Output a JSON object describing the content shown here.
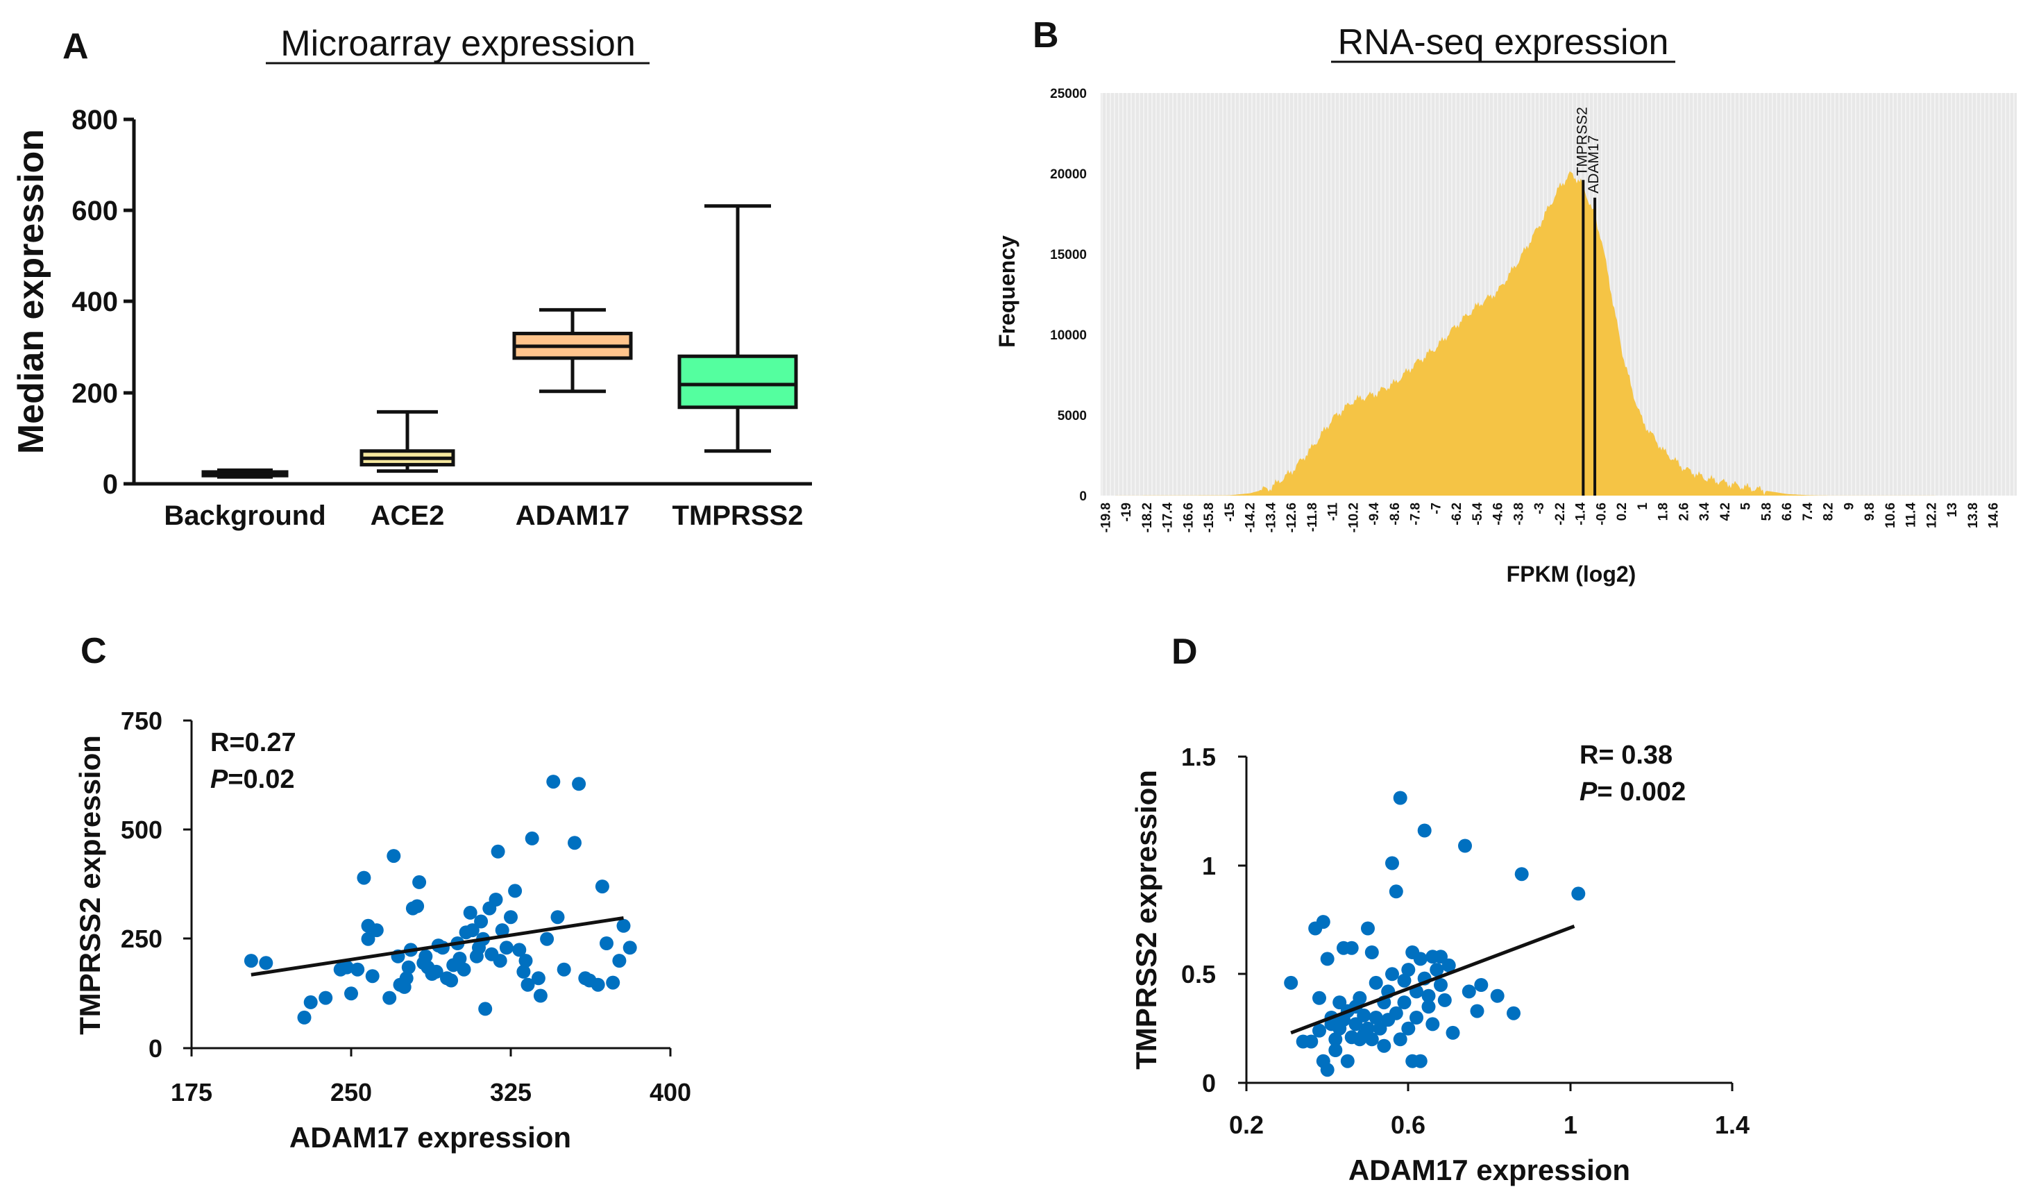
{
  "panels": {
    "a_label": "A",
    "b_label": "B",
    "c_label": "C",
    "d_label": "D"
  },
  "colors": {
    "ace2_box": "#F5E79E",
    "adam17_box": "#FFC48C",
    "tmprss2_box": "#54FF9F",
    "histogram_bar": "#F5C445",
    "histogram_bg": "#E8E8E8",
    "scatter_point": "#0070C0"
  },
  "chart_data": [
    {
      "type": "box",
      "title": "Microarray expression",
      "xlabel": "",
      "ylabel": "Median expression",
      "ylim": [
        0,
        800
      ],
      "yticks": [
        "0",
        "200",
        "400",
        "600",
        "800"
      ],
      "categories": [
        "Background",
        "ACE2",
        "ADAM17",
        "TMPRSS2"
      ],
      "boxes": [
        {
          "name": "Background",
          "min": 15,
          "q1": 18,
          "median": 22,
          "q3": 26,
          "max": 30
        },
        {
          "name": "ACE2",
          "min": 28,
          "q1": 42,
          "median": 56,
          "q3": 72,
          "max": 158
        },
        {
          "name": "ADAM17",
          "min": 203,
          "q1": 276,
          "median": 302,
          "q3": 330,
          "max": 382
        },
        {
          "name": "TMPRSS2",
          "min": 72,
          "q1": 168,
          "median": 218,
          "q3": 280,
          "max": 610
        }
      ]
    },
    {
      "type": "bar",
      "title": "RNA-seq expression",
      "xlabel": "FPKM (log2)",
      "ylabel": "Frequency",
      "ylim": [
        0,
        25000
      ],
      "yticks": [
        "0",
        "5000",
        "10000",
        "15000",
        "20000",
        "25000"
      ],
      "xlim": [
        -20,
        15.5
      ],
      "xticks": [
        "-19.8",
        "-19",
        "-18.2",
        "-17.4",
        "-16.6",
        "-15.8",
        "-15",
        "-14.2",
        "-13.4",
        "-12.6",
        "-11.8",
        "-11",
        "-10.2",
        "-9.4",
        "-8.6",
        "-7.8",
        "-7",
        "-6.2",
        "-5.4",
        "-4.6",
        "-3.8",
        "-3",
        "-2.2",
        "-1.4",
        "-0.6",
        "0.2",
        "1",
        "1.8",
        "2.6",
        "3.4",
        "4.2",
        "5",
        "5.8",
        "6.6",
        "7.4",
        "8.2",
        "9",
        "9.8",
        "10.6",
        "11.4",
        "12.2",
        "13",
        "13.8",
        "14.6"
      ],
      "distribution_profile": [
        [
          -20,
          0
        ],
        [
          -15,
          20
        ],
        [
          -14.2,
          150
        ],
        [
          -13.4,
          500
        ],
        [
          -12.6,
          1500
        ],
        [
          -11.8,
          3000
        ],
        [
          -11,
          4800
        ],
        [
          -10.2,
          5900
        ],
        [
          -9.4,
          6300
        ],
        [
          -8.6,
          7000
        ],
        [
          -7.8,
          8200
        ],
        [
          -7,
          9200
        ],
        [
          -6.2,
          10600
        ],
        [
          -5.4,
          11800
        ],
        [
          -4.6,
          12700
        ],
        [
          -3.8,
          14600
        ],
        [
          -3,
          16800
        ],
        [
          -2.2,
          19200
        ],
        [
          -1.8,
          20000
        ],
        [
          -1.4,
          19500
        ],
        [
          -1.0,
          18000
        ],
        [
          -0.6,
          16000
        ],
        [
          -0.2,
          12500
        ],
        [
          0.2,
          9000
        ],
        [
          0.6,
          6500
        ],
        [
          1,
          4600
        ],
        [
          1.8,
          2800
        ],
        [
          2.6,
          1700
        ],
        [
          3.4,
          1100
        ],
        [
          4.2,
          800
        ],
        [
          5,
          520
        ],
        [
          5.8,
          300
        ],
        [
          6.6,
          100
        ],
        [
          7.4,
          25
        ],
        [
          8.2,
          5
        ],
        [
          15.5,
          0
        ]
      ],
      "annotations": [
        {
          "label": "TMPRSS2",
          "x": -1.3,
          "line_top": 19600
        },
        {
          "label": "ADAM17",
          "x": -0.85,
          "line_top": 18500
        }
      ]
    },
    {
      "type": "scatter",
      "xlabel": "ADAM17 expression",
      "ylabel": "TMPRSS2  expression",
      "xlim": [
        175,
        400
      ],
      "ylim": [
        0,
        750
      ],
      "xticks": [
        "175",
        "250",
        "325",
        "400"
      ],
      "yticks": [
        "0",
        "250",
        "500",
        "750"
      ],
      "stats": {
        "r": "R=0.27",
        "p_symbol": "P",
        "p_value": "=0.02"
      },
      "trendline": [
        [
          203,
          168
        ],
        [
          378,
          298
        ]
      ],
      "points": [
        [
          203,
          200
        ],
        [
          210,
          195
        ],
        [
          228,
          70
        ],
        [
          231,
          105
        ],
        [
          238,
          115
        ],
        [
          245,
          180
        ],
        [
          248,
          185
        ],
        [
          250,
          125
        ],
        [
          253,
          180
        ],
        [
          256,
          390
        ],
        [
          258,
          250
        ],
        [
          258,
          280
        ],
        [
          260,
          165
        ],
        [
          262,
          270
        ],
        [
          268,
          115
        ],
        [
          270,
          440
        ],
        [
          272,
          210
        ],
        [
          273,
          145
        ],
        [
          275,
          140
        ],
        [
          276,
          160
        ],
        [
          277,
          185
        ],
        [
          278,
          225
        ],
        [
          279,
          320
        ],
        [
          281,
          325
        ],
        [
          282,
          380
        ],
        [
          284,
          195
        ],
        [
          285,
          210
        ],
        [
          286,
          185
        ],
        [
          288,
          170
        ],
        [
          290,
          175
        ],
        [
          291,
          235
        ],
        [
          293,
          230
        ],
        [
          295,
          160
        ],
        [
          297,
          155
        ],
        [
          298,
          190
        ],
        [
          300,
          240
        ],
        [
          301,
          205
        ],
        [
          303,
          180
        ],
        [
          304,
          265
        ],
        [
          306,
          310
        ],
        [
          307,
          270
        ],
        [
          309,
          210
        ],
        [
          310,
          230
        ],
        [
          311,
          290
        ],
        [
          312,
          250
        ],
        [
          313,
          90
        ],
        [
          315,
          320
        ],
        [
          316,
          215
        ],
        [
          318,
          340
        ],
        [
          319,
          450
        ],
        [
          320,
          200
        ],
        [
          321,
          270
        ],
        [
          323,
          230
        ],
        [
          325,
          300
        ],
        [
          327,
          360
        ],
        [
          329,
          225
        ],
        [
          331,
          175
        ],
        [
          332,
          200
        ],
        [
          333,
          145
        ],
        [
          335,
          480
        ],
        [
          338,
          160
        ],
        [
          339,
          120
        ],
        [
          342,
          250
        ],
        [
          345,
          610
        ],
        [
          347,
          300
        ],
        [
          350,
          180
        ],
        [
          355,
          470
        ],
        [
          357,
          605
        ],
        [
          360,
          160
        ],
        [
          362,
          155
        ],
        [
          366,
          145
        ],
        [
          368,
          370
        ],
        [
          370,
          240
        ],
        [
          373,
          150
        ],
        [
          376,
          200
        ],
        [
          378,
          280
        ],
        [
          381,
          230
        ]
      ]
    },
    {
      "type": "scatter",
      "xlabel": "ADAM17 expression",
      "ylabel": "TMPRSS2 expression",
      "xlim": [
        0.2,
        1.4
      ],
      "ylim": [
        0,
        1.5
      ],
      "xticks": [
        "0.2",
        "0.6",
        "1",
        "1.4"
      ],
      "yticks": [
        "0",
        "0.5",
        "1",
        "1.5"
      ],
      "stats": {
        "r": "R= 0.38",
        "p_symbol": "P",
        "p_value": "= 0.002"
      },
      "trendline": [
        [
          0.31,
          0.23
        ],
        [
          1.01,
          0.72
        ]
      ],
      "points": [
        [
          0.31,
          0.46
        ],
        [
          0.34,
          0.19
        ],
        [
          0.36,
          0.19
        ],
        [
          0.37,
          0.71
        ],
        [
          0.38,
          0.39
        ],
        [
          0.38,
          0.24
        ],
        [
          0.39,
          0.74
        ],
        [
          0.39,
          0.1
        ],
        [
          0.4,
          0.06
        ],
        [
          0.4,
          0.57
        ],
        [
          0.41,
          0.27
        ],
        [
          0.41,
          0.3
        ],
        [
          0.42,
          0.2
        ],
        [
          0.42,
          0.15
        ],
        [
          0.43,
          0.25
        ],
        [
          0.43,
          0.37
        ],
        [
          0.44,
          0.62
        ],
        [
          0.44,
          0.29
        ],
        [
          0.45,
          0.33
        ],
        [
          0.45,
          0.1
        ],
        [
          0.46,
          0.21
        ],
        [
          0.46,
          0.62
        ],
        [
          0.47,
          0.27
        ],
        [
          0.47,
          0.35
        ],
        [
          0.48,
          0.2
        ],
        [
          0.48,
          0.39
        ],
        [
          0.49,
          0.31
        ],
        [
          0.49,
          0.22
        ],
        [
          0.5,
          0.25
        ],
        [
          0.5,
          0.71
        ],
        [
          0.51,
          0.6
        ],
        [
          0.51,
          0.2
        ],
        [
          0.52,
          0.46
        ],
        [
          0.52,
          0.3
        ],
        [
          0.53,
          0.25
        ],
        [
          0.54,
          0.37
        ],
        [
          0.54,
          0.17
        ],
        [
          0.55,
          0.29
        ],
        [
          0.55,
          0.42
        ],
        [
          0.56,
          0.5
        ],
        [
          0.56,
          1.01
        ],
        [
          0.57,
          0.32
        ],
        [
          0.57,
          0.88
        ],
        [
          0.58,
          1.31
        ],
        [
          0.58,
          0.2
        ],
        [
          0.59,
          0.47
        ],
        [
          0.59,
          0.37
        ],
        [
          0.6,
          0.25
        ],
        [
          0.6,
          0.52
        ],
        [
          0.61,
          0.6
        ],
        [
          0.61,
          0.1
        ],
        [
          0.62,
          0.42
        ],
        [
          0.62,
          0.3
        ],
        [
          0.63,
          0.57
        ],
        [
          0.63,
          0.1
        ],
        [
          0.64,
          1.16
        ],
        [
          0.64,
          0.48
        ],
        [
          0.65,
          0.4
        ],
        [
          0.65,
          0.35
        ],
        [
          0.66,
          0.58
        ],
        [
          0.66,
          0.27
        ],
        [
          0.67,
          0.52
        ],
        [
          0.68,
          0.45
        ],
        [
          0.68,
          0.58
        ],
        [
          0.69,
          0.38
        ],
        [
          0.7,
          0.54
        ],
        [
          0.71,
          0.23
        ],
        [
          0.74,
          1.09
        ],
        [
          0.75,
          0.42
        ],
        [
          0.77,
          0.33
        ],
        [
          0.78,
          0.45
        ],
        [
          0.82,
          0.4
        ],
        [
          0.86,
          0.32
        ],
        [
          0.88,
          0.96
        ],
        [
          1.02,
          0.87
        ]
      ]
    }
  ]
}
